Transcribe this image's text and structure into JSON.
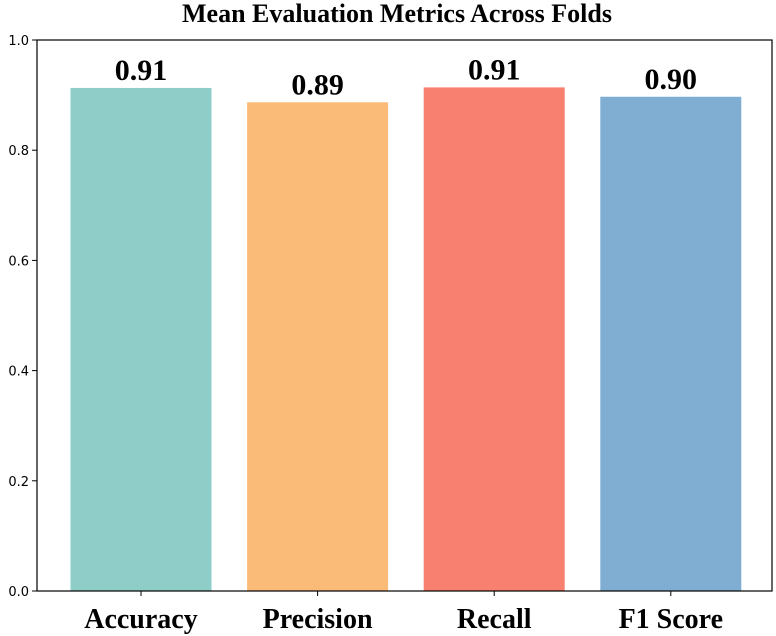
{
  "chart_data": {
    "type": "bar",
    "title": "Mean Evaluation Metrics Across Folds",
    "categories": [
      "Accuracy",
      "Precision",
      "Recall",
      "F1 Score"
    ],
    "values": [
      0.913,
      0.887,
      0.914,
      0.897
    ],
    "data_labels": [
      "0.91",
      "0.89",
      "0.91",
      "0.90"
    ],
    "colors": [
      "#8ecdc8",
      "#fbbb78",
      "#f88070",
      "#80aed2"
    ],
    "xlabel": "",
    "ylabel": "",
    "ylim": [
      0,
      1.0
    ],
    "yticks": [
      0.0,
      0.2,
      0.4,
      0.6,
      0.8,
      1.0
    ],
    "ytick_labels": [
      "0.0",
      "0.2",
      "0.4",
      "0.6",
      "0.8",
      "1.0"
    ],
    "grid": false,
    "legend": "none"
  }
}
